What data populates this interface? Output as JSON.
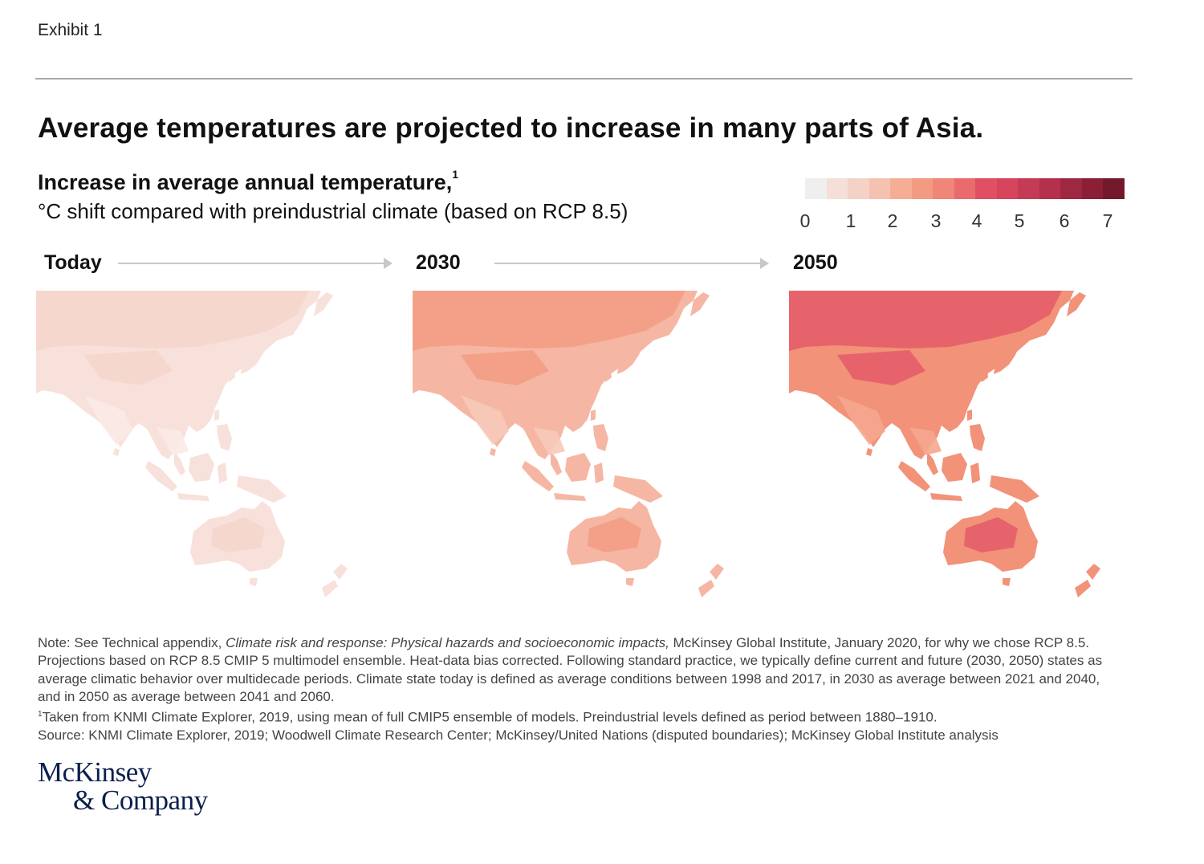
{
  "exhibit_label": "Exhibit 1",
  "title": "Average temperatures are projected to increase in many parts of Asia.",
  "subtitle": "Increase in average annual temperature,",
  "subtitle_footnote": "1",
  "subtitle_units": "°C shift compared with preindustrial climate (based on RCP 8.5)",
  "legend": {
    "colors": [
      "#efefef",
      "#f6dfd9",
      "#f4d2c6",
      "#f5c2b1",
      "#f5ad96",
      "#f39a82",
      "#ef8677",
      "#ea6b6d",
      "#e04f62",
      "#d6445e",
      "#c43b56",
      "#b4304c",
      "#9e2742",
      "#8a1f36",
      "#74192c"
    ],
    "ticks": [
      "0",
      "1",
      "2",
      "3",
      "4",
      "5",
      "6",
      "7"
    ]
  },
  "panels": [
    {
      "label": "Today",
      "fills": {
        "base": "#f8e1da",
        "warm": "#f6d5ca",
        "cool": "#faeae5",
        "ocean": "#ffffff"
      }
    },
    {
      "label": "2030",
      "fills": {
        "base": "#f5b7a3",
        "warm": "#f39c85",
        "cool": "#f7c9b9",
        "ocean": "#ffffff"
      }
    },
    {
      "label": "2050",
      "fills": {
        "base": "#f29279",
        "warm": "#e55b68",
        "cool": "#f5a78f",
        "ocean": "#ffffff"
      }
    }
  ],
  "notes": {
    "note_prefix": "Note: See Technical appendix, ",
    "note_italic": "Climate risk and response: Physical hazards and socioeconomic impacts,",
    "note_rest": " McKinsey Global Institute, January 2020, for why we chose RCP 8.5. Projections based on RCP 8.5 CMIP 5 multimodel ensemble. Heat-data bias corrected. Following standard practice, we typically define current and future (2030, 2050) states as average climatic behavior over multidecade periods. Climate state today is defined as average conditions between 1998 and 2017, in 2030 as average between 2021 and 2040, and in 2050 as average between 2041 and 2060.",
    "footnote_mark": "1",
    "footnote": "Taken from KNMI Climate Explorer, 2019, using mean of full CMIP5 ensemble of models. Preindustrial levels defined as period between 1880–1910.",
    "source": "Source: KNMI Climate Explorer, 2019; Woodwell Climate Research Center; McKinsey/United Nations (disputed boundaries); McKinsey Global Institute analysis"
  },
  "logo": {
    "line1": "McKinsey",
    "line2": "& Company"
  }
}
